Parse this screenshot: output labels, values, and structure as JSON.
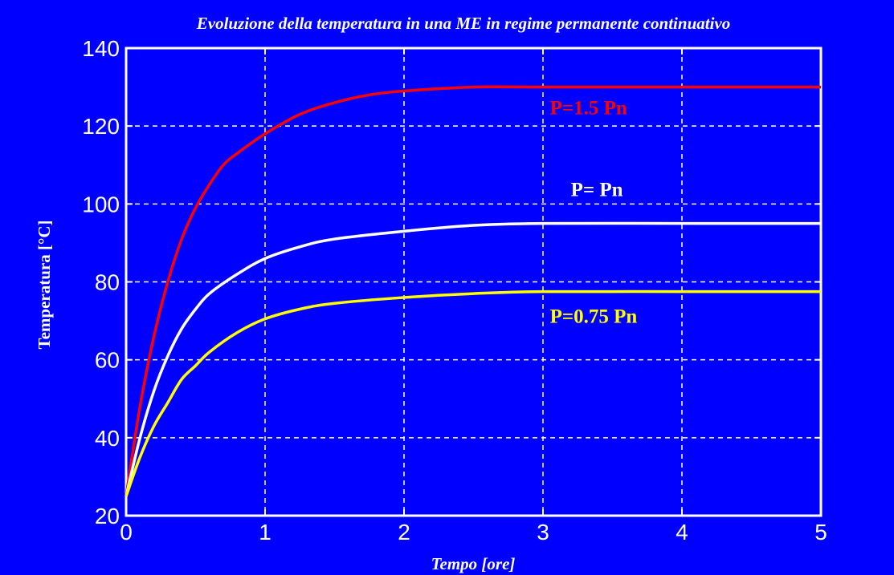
{
  "chart_data": {
    "type": "line",
    "title": "Evoluzione della temperatura in una ME in regime permanente continuativo",
    "xlabel": "Tempo [ore]",
    "ylabel": "Temperatura [°C]",
    "xlim": [
      0,
      5
    ],
    "ylim": [
      20,
      140
    ],
    "xticks": [
      "0",
      "1",
      "2",
      "3",
      "4",
      "5"
    ],
    "yticks": [
      "20",
      "40",
      "60",
      "80",
      "100",
      "120",
      "140"
    ],
    "grid": true,
    "background_color": "#0000FF",
    "series": [
      {
        "name": "P=1.5 Pn",
        "color": "#FF0000",
        "x": [
          0,
          0.1,
          0.2,
          0.3,
          0.4,
          0.5,
          0.6,
          0.7,
          0.8,
          1.0,
          1.25,
          1.5,
          1.75,
          2.0,
          2.5,
          3.0,
          4.0,
          5.0
        ],
        "y": [
          25,
          48,
          66,
          80,
          91,
          99,
          105,
          110,
          113,
          118,
          123,
          126,
          128,
          129,
          130,
          130,
          130,
          130
        ]
      },
      {
        "name": "P= Pn",
        "color": "#FFFFFF",
        "x": [
          0,
          0.1,
          0.2,
          0.3,
          0.4,
          0.5,
          0.6,
          0.8,
          1.0,
          1.25,
          1.5,
          2.0,
          2.5,
          3.0,
          4.0,
          5.0
        ],
        "y": [
          25,
          40,
          52,
          61,
          68,
          73,
          77,
          82,
          86,
          89,
          91,
          93,
          94.5,
          95,
          95,
          95
        ]
      },
      {
        "name": "P=0.75 Pn",
        "color": "#FFFF00",
        "x": [
          0,
          0.1,
          0.2,
          0.3,
          0.4,
          0.5,
          0.6,
          0.8,
          1.0,
          1.25,
          1.5,
          2.0,
          2.5,
          3.0,
          4.0,
          5.0
        ],
        "y": [
          25,
          35,
          43,
          49,
          55,
          58.5,
          62,
          67,
          70.5,
          73,
          74.5,
          76,
          77,
          77.5,
          77.5,
          77.5
        ]
      }
    ],
    "annotations": [
      {
        "text": "P=1.5 Pn",
        "x": 3.05,
        "y": 123,
        "color": "#FF0000"
      },
      {
        "text": "P= Pn",
        "x": 3.2,
        "y": 102,
        "color": "#FFFFFF"
      },
      {
        "text": "P=0.75 Pn",
        "x": 3.05,
        "y": 69.5,
        "color": "#FFFF00"
      }
    ]
  }
}
